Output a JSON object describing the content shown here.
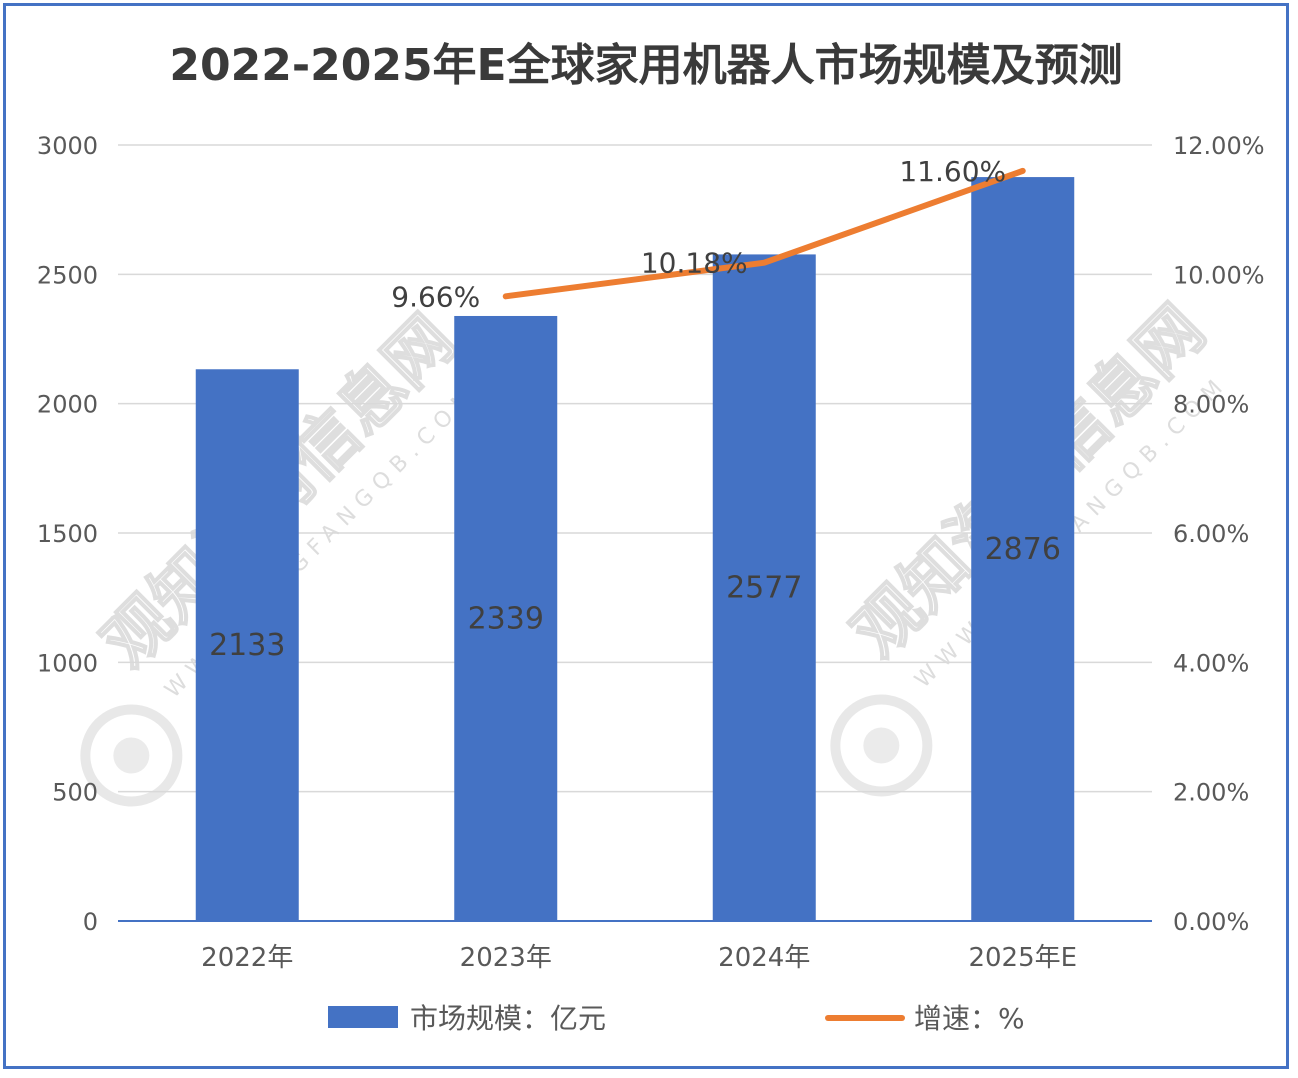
{
  "chart_data": {
    "type": "bar+line",
    "title": "2022-2025年E全球家用机器人市场规模及预测",
    "categories": [
      "2022年",
      "2023年",
      "2024年",
      "2025年E"
    ],
    "series": [
      {
        "name": "市场规模：亿元",
        "kind": "bar",
        "axis": "left",
        "color": "#4472C4",
        "values": [
          2133,
          2339,
          2577,
          2876
        ],
        "labels": [
          "2133",
          "2339",
          "2577",
          "2876"
        ]
      },
      {
        "name": "增速：%",
        "kind": "line",
        "axis": "right",
        "color": "#ED7D31",
        "values": [
          null,
          9.66,
          10.18,
          11.6
        ],
        "labels": [
          "",
          "9.66%",
          "10.18%",
          "11.60%"
        ]
      }
    ],
    "y_left": {
      "min": 0,
      "max": 3000,
      "ticks": [
        "0",
        "500",
        "1000",
        "1500",
        "2000",
        "2500",
        "3000"
      ]
    },
    "y_right": {
      "min": 0,
      "max": 12,
      "ticks": [
        "0.00%",
        "2.00%",
        "4.00%",
        "6.00%",
        "8.00%",
        "10.00%",
        "12.00%"
      ]
    },
    "grid": true,
    "legend_position": "bottom"
  },
  "watermark": {
    "text": "观知海内信息网",
    "sub": "WWW.DONGFANGQB.COM"
  }
}
